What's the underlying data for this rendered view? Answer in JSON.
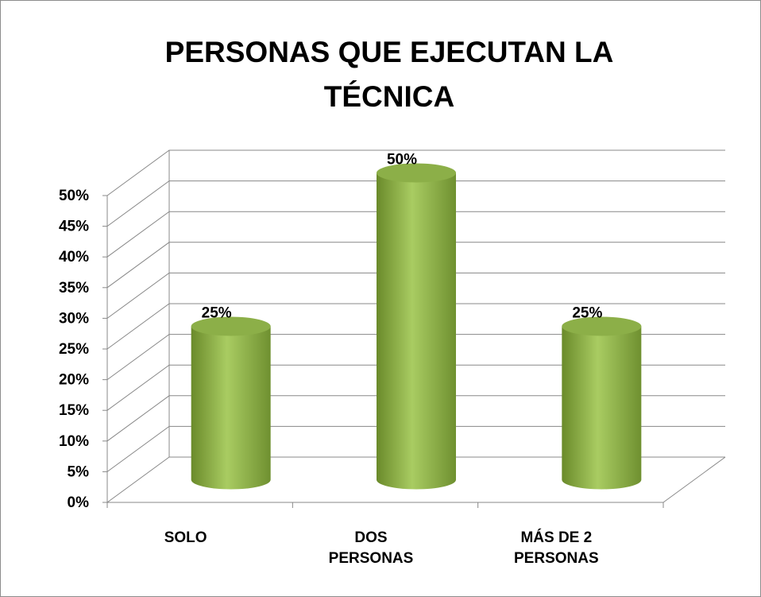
{
  "chart_data": {
    "type": "bar3d",
    "title": "PERSONAS QUE EJECUTAN LA TÉCNICA",
    "categories": [
      "SOLO",
      "DOS PERSONAS",
      "MÁS DE 2 PERSONAS"
    ],
    "values": [
      25,
      50,
      25
    ],
    "value_labels": [
      "25%",
      "50%",
      "25%"
    ],
    "color": "#9bbb59",
    "ylim": [
      0,
      50
    ],
    "yticks": [
      {
        "value": 0,
        "label": "0%"
      },
      {
        "value": 5,
        "label": "5%"
      },
      {
        "value": 10,
        "label": "10%"
      },
      {
        "value": 15,
        "label": "15%"
      },
      {
        "value": 20,
        "label": "20%"
      },
      {
        "value": 25,
        "label": "25%"
      },
      {
        "value": 30,
        "label": "30%"
      },
      {
        "value": 35,
        "label": "35%"
      },
      {
        "value": 40,
        "label": "40%"
      },
      {
        "value": 45,
        "label": "45%"
      },
      {
        "value": 50,
        "label": "50%"
      }
    ],
    "grid": true
  }
}
